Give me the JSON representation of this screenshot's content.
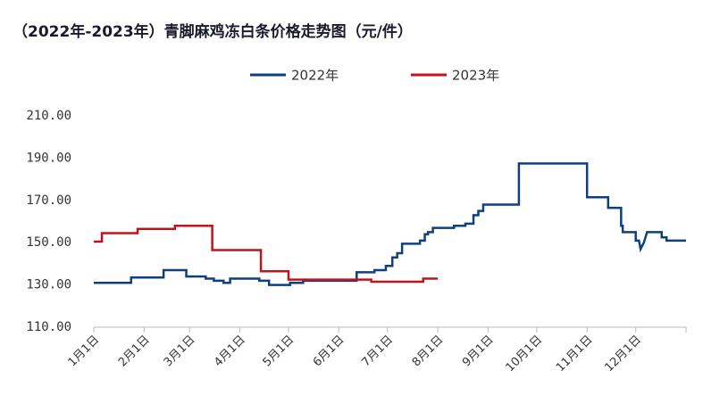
{
  "chart_data": {
    "type": "line",
    "title": "（2022年-2023年）青脚麻鸡冻白条价格走势图（元/件）",
    "xlim": [
      0,
      365
    ],
    "xticks": [
      {
        "value": 0,
        "label": "1月1日"
      },
      {
        "value": 31,
        "label": "2月1日"
      },
      {
        "value": 59,
        "label": "3月1日"
      },
      {
        "value": 90,
        "label": "4月1日"
      },
      {
        "value": 120,
        "label": "5月1日"
      },
      {
        "value": 151,
        "label": "6月1日"
      },
      {
        "value": 181,
        "label": "7月1日"
      },
      {
        "value": 212,
        "label": "8月1日"
      },
      {
        "value": 243,
        "label": "9月1日"
      },
      {
        "value": 273,
        "label": "10月1日"
      },
      {
        "value": 304,
        "label": "11月1日"
      },
      {
        "value": 334,
        "label": "12月1日"
      }
    ],
    "ylim": [
      110,
      210
    ],
    "yticks": [
      {
        "value": 110,
        "label": "110.00"
      },
      {
        "value": 130,
        "label": "130.00"
      },
      {
        "value": 150,
        "label": "150.00"
      },
      {
        "value": 170,
        "label": "170.00"
      },
      {
        "value": 190,
        "label": "190.00"
      },
      {
        "value": 210,
        "label": "210.00"
      }
    ],
    "legend": "top",
    "series": [
      {
        "name": "2022年",
        "color": "#0e3f7e",
        "x": [
          0,
          23,
          23,
          43,
          43,
          57,
          57,
          69,
          69,
          74,
          74,
          80,
          80,
          84,
          84,
          102,
          102,
          108,
          108,
          121,
          121,
          129,
          129,
          162,
          162,
          173,
          173,
          180,
          180,
          184,
          184,
          187,
          187,
          190,
          190,
          201,
          201,
          204,
          204,
          206,
          206,
          209,
          209,
          222,
          222,
          229,
          229,
          234,
          234,
          237,
          237,
          240,
          240,
          262,
          262,
          304,
          304,
          317,
          317,
          325,
          325,
          326,
          326,
          334,
          334,
          336,
          337,
          339,
          341,
          350,
          350,
          353,
          353,
          365
        ],
        "values": [
          131,
          131,
          133.5,
          133.5,
          137,
          137,
          134,
          134,
          133,
          133,
          132,
          132,
          131,
          131,
          133,
          133,
          132,
          132,
          130,
          130,
          131,
          131,
          132,
          132,
          136,
          136,
          137,
          137,
          139,
          139,
          143,
          143,
          145,
          145,
          149.5,
          149.5,
          151,
          151,
          154,
          154,
          155,
          155,
          157,
          157,
          158,
          158,
          159,
          159,
          163,
          163,
          165,
          165,
          168,
          168,
          187.5,
          187.5,
          171.5,
          171.5,
          166.5,
          166.5,
          158,
          158,
          155,
          155,
          151,
          151,
          147,
          150,
          155,
          155,
          152.5,
          152.5,
          151,
          151
        ]
      },
      {
        "name": "2023年",
        "color": "#c0141c",
        "x": [
          0,
          5,
          5,
          27,
          27,
          50,
          50,
          73,
          73,
          103,
          103,
          120,
          120,
          171,
          171,
          203,
          203,
          212
        ],
        "values": [
          150.5,
          150.5,
          154.5,
          154.5,
          156.5,
          156.5,
          158,
          158,
          146.5,
          146.5,
          136.5,
          136.5,
          132.5,
          132.5,
          131.5,
          131.5,
          133,
          133
        ]
      }
    ]
  }
}
